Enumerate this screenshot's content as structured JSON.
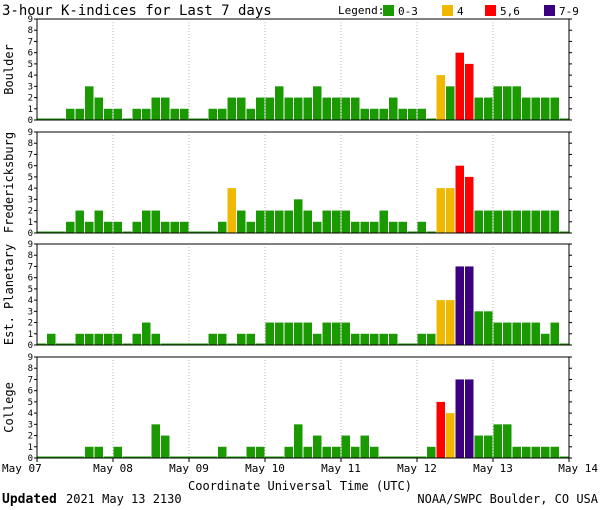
{
  "title": "3-hour K-indices for Last 7 days",
  "legend": {
    "label": "Legend:",
    "items": [
      {
        "label": "0-3",
        "color": "#1a9900"
      },
      {
        "label": "4",
        "color": "#f0b800"
      },
      {
        "label": "5,6",
        "color": "#ff0000"
      },
      {
        "label": "7-9",
        "color": "#3a0080"
      }
    ]
  },
  "colors": {
    "low": "#1a9900",
    "four": "#f0b800",
    "mid": "#ff0000",
    "high": "#3a0080"
  },
  "xlabel": "Coordinate Universal Time (UTC)",
  "xticks": [
    "May 07",
    "May 08",
    "May 09",
    "May 10",
    "May 11",
    "May 12",
    "May 13",
    "May 14"
  ],
  "footer": {
    "updated_label": "Updated",
    "updated_value": "2021 May 13 2130",
    "credit": "NOAA/SWPC Boulder, CO USA"
  },
  "yticks": [
    "0",
    "1",
    "2",
    "3",
    "4",
    "5",
    "6",
    "7",
    "8",
    "9"
  ],
  "chart_data": [
    {
      "type": "bar",
      "ylabel": "Boulder",
      "ylim": [
        0,
        9
      ],
      "values": [
        0,
        0,
        0,
        1,
        1,
        3,
        2,
        1,
        1,
        0,
        1,
        1,
        2,
        2,
        1,
        1,
        0,
        0,
        1,
        1,
        2,
        2,
        1,
        2,
        2,
        3,
        2,
        2,
        2,
        3,
        2,
        2,
        2,
        2,
        1,
        1,
        1,
        2,
        1,
        1,
        1,
        0,
        4,
        3,
        6,
        5,
        2,
        2,
        3,
        3,
        3,
        2,
        2,
        2,
        2,
        0
      ]
    },
    {
      "type": "bar",
      "ylabel": "Fredericksburg",
      "ylim": [
        0,
        9
      ],
      "values": [
        0,
        0,
        0,
        1,
        2,
        1,
        2,
        1,
        1,
        0,
        1,
        2,
        2,
        1,
        1,
        1,
        0,
        0,
        0,
        1,
        4,
        2,
        1,
        2,
        2,
        2,
        2,
        3,
        2,
        1,
        2,
        2,
        2,
        1,
        1,
        1,
        2,
        1,
        1,
        0,
        1,
        0,
        4,
        4,
        6,
        5,
        2,
        2,
        2,
        2,
        2,
        2,
        2,
        2,
        2,
        0
      ]
    },
    {
      "type": "bar",
      "ylabel": "Est. Planetary",
      "ylim": [
        0,
        9
      ],
      "values": [
        0,
        1,
        0,
        0,
        1,
        1,
        1,
        1,
        1,
        0,
        1,
        2,
        1,
        0,
        0,
        0,
        0,
        0,
        1,
        1,
        0,
        1,
        1,
        0,
        2,
        2,
        2,
        2,
        2,
        1,
        2,
        2,
        2,
        1,
        1,
        1,
        1,
        1,
        0,
        0,
        1,
        1,
        4,
        4,
        7,
        7,
        3,
        3,
        2,
        2,
        2,
        2,
        2,
        1,
        2,
        0
      ]
    },
    {
      "type": "bar",
      "ylabel": "College",
      "ylim": [
        0,
        9
      ],
      "values": [
        0,
        0,
        0,
        0,
        0,
        1,
        1,
        0,
        1,
        0,
        0,
        0,
        3,
        2,
        0,
        0,
        0,
        0,
        0,
        1,
        0,
        0,
        1,
        1,
        0,
        0,
        1,
        3,
        1,
        2,
        1,
        1,
        2,
        1,
        2,
        1,
        0,
        0,
        0,
        0,
        0,
        1,
        5,
        4,
        7,
        7,
        2,
        2,
        3,
        3,
        1,
        1,
        1,
        1,
        1,
        0
      ]
    }
  ]
}
